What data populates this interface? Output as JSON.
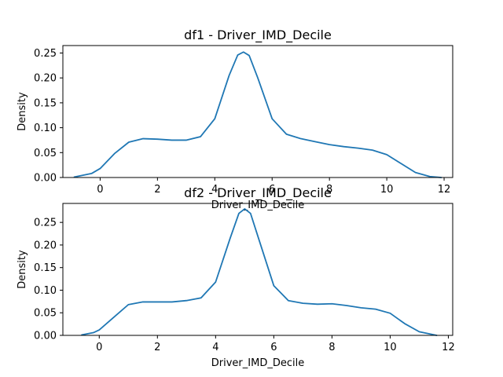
{
  "colors": {
    "line": "#1f77b4"
  },
  "chart_data": [
    {
      "type": "line",
      "title": "df1 - Driver_IMD_Decile",
      "xlabel": "Driver_IMD_Decile",
      "ylabel": "Density",
      "xlim": [
        -1.3,
        12.3
      ],
      "ylim": [
        0,
        0.265
      ],
      "xticks": [
        0,
        2,
        4,
        6,
        8,
        10,
        12
      ],
      "xtick_labels": [
        "0",
        "2",
        "4",
        "6",
        "8",
        "10",
        "12"
      ],
      "yticks": [
        0,
        0.05,
        0.1,
        0.15,
        0.2,
        0.25
      ],
      "ytick_labels": [
        "0.00",
        "0.05",
        "0.10",
        "0.15",
        "0.20",
        "0.25"
      ],
      "grid": false,
      "series": [
        {
          "x": [
            -0.9,
            -0.3,
            0.0,
            0.5,
            1.0,
            1.5,
            2.0,
            2.5,
            3.0,
            3.5,
            4.0,
            4.5,
            4.8,
            5.0,
            5.2,
            5.5,
            6.0,
            6.5,
            7.0,
            7.5,
            8.0,
            8.5,
            9.0,
            9.5,
            10.0,
            10.5,
            11.0,
            11.5,
            11.9
          ],
          "y": [
            0.001,
            0.008,
            0.018,
            0.048,
            0.071,
            0.078,
            0.077,
            0.075,
            0.075,
            0.082,
            0.118,
            0.205,
            0.246,
            0.252,
            0.245,
            0.2,
            0.118,
            0.087,
            0.078,
            0.072,
            0.066,
            0.062,
            0.059,
            0.055,
            0.046,
            0.028,
            0.01,
            0.002,
            0.0
          ]
        }
      ]
    },
    {
      "type": "line",
      "title": "df2 - Driver_IMD_Decile",
      "xlabel": "Driver_IMD_Decile",
      "ylabel": "Density",
      "xlim": [
        -1.25,
        12.15
      ],
      "ylim": [
        0,
        0.292
      ],
      "xticks": [
        0,
        2,
        4,
        6,
        8,
        10,
        12
      ],
      "xtick_labels": [
        "0",
        "2",
        "4",
        "6",
        "8",
        "10",
        "12"
      ],
      "yticks": [
        0,
        0.05,
        0.1,
        0.15,
        0.2,
        0.25
      ],
      "ytick_labels": [
        "0.00",
        "0.05",
        "0.10",
        "0.15",
        "0.20",
        "0.25"
      ],
      "grid": false,
      "series": [
        {
          "x": [
            -0.6,
            -0.2,
            0.0,
            0.5,
            1.0,
            1.5,
            2.0,
            2.5,
            3.0,
            3.5,
            4.0,
            4.5,
            4.8,
            5.0,
            5.2,
            5.5,
            6.0,
            6.5,
            7.0,
            7.5,
            8.0,
            8.5,
            9.0,
            9.5,
            10.0,
            10.5,
            11.0,
            11.6
          ],
          "y": [
            0.001,
            0.006,
            0.012,
            0.04,
            0.068,
            0.074,
            0.074,
            0.074,
            0.077,
            0.083,
            0.118,
            0.215,
            0.27,
            0.28,
            0.27,
            0.21,
            0.11,
            0.077,
            0.071,
            0.069,
            0.07,
            0.066,
            0.061,
            0.058,
            0.049,
            0.026,
            0.008,
            0.0
          ]
        }
      ]
    }
  ]
}
